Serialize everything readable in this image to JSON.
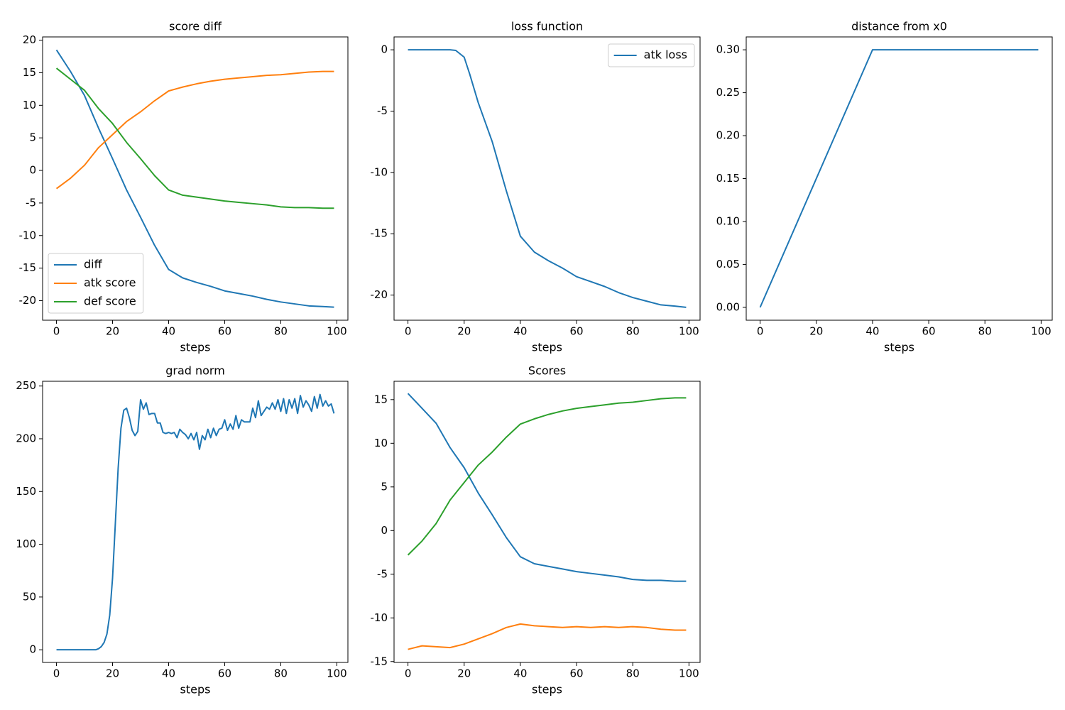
{
  "chart_data": [
    {
      "type": "line",
      "title": "score diff",
      "xlabel": "steps",
      "x": [
        0,
        5,
        10,
        15,
        20,
        25,
        30,
        35,
        40,
        45,
        50,
        55,
        60,
        65,
        70,
        75,
        80,
        85,
        90,
        95,
        99
      ],
      "series": [
        {
          "name": "diff",
          "color": "#1f77b4",
          "values": [
            18.5,
            15.2,
            11.5,
            6.5,
            1.8,
            -3,
            -7.2,
            -11.5,
            -15.2,
            -16.5,
            -17.2,
            -17.8,
            -18.5,
            -18.9,
            -19.3,
            -19.8,
            -20.2,
            -20.5,
            -20.8,
            -20.9,
            -21
          ]
        },
        {
          "name": "atk score",
          "color": "#ff7f0e",
          "values": [
            -2.8,
            -1.2,
            0.8,
            3.5,
            5.5,
            7.5,
            9.0,
            10.7,
            12.2,
            12.8,
            13.3,
            13.7,
            14.0,
            14.2,
            14.4,
            14.6,
            14.7,
            14.9,
            15.1,
            15.2,
            15.2
          ]
        },
        {
          "name": "def score",
          "color": "#2ca02c",
          "values": [
            15.7,
            14.0,
            12.3,
            9.5,
            7.2,
            4.3,
            1.8,
            -0.8,
            -3.0,
            -3.8,
            -4.1,
            -4.4,
            -4.7,
            -4.9,
            -5.1,
            -5.3,
            -5.6,
            -5.7,
            -5.7,
            -5.8,
            -5.8
          ]
        }
      ],
      "xlim": [
        -4.95,
        103.95
      ],
      "xticks": [
        0,
        20,
        40,
        60,
        80,
        100
      ],
      "ylim": [
        -23,
        20.5
      ],
      "yticks": [
        -20,
        -15,
        -10,
        -5,
        0,
        5,
        10,
        15,
        20
      ],
      "legend": "lower left"
    },
    {
      "type": "line",
      "title": "loss function",
      "xlabel": "steps",
      "x": [
        0,
        5,
        10,
        15,
        17,
        20,
        22,
        25,
        30,
        35,
        40,
        45,
        50,
        55,
        60,
        65,
        70,
        75,
        80,
        85,
        90,
        95,
        99
      ],
      "series": [
        {
          "name": "atk loss",
          "color": "#1f77b4",
          "values": [
            0,
            0,
            0,
            0,
            -0.05,
            -0.6,
            -2.0,
            -4.3,
            -7.5,
            -11.5,
            -15.2,
            -16.5,
            -17.2,
            -17.8,
            -18.5,
            -18.9,
            -19.3,
            -19.8,
            -20.2,
            -20.5,
            -20.8,
            -20.9,
            -21.0
          ]
        }
      ],
      "xlim": [
        -4.95,
        103.95
      ],
      "xticks": [
        0,
        20,
        40,
        60,
        80,
        100
      ],
      "ylim": [
        -22.05,
        1.05
      ],
      "yticks": [
        -20,
        -15,
        -10,
        -5,
        0
      ],
      "legend": "upper right"
    },
    {
      "type": "line",
      "title": "distance from x0",
      "xlabel": "steps",
      "x": [
        0,
        40,
        99
      ],
      "values": [
        0,
        0.3,
        0.3
      ],
      "color": "#1f77b4",
      "xlim": [
        -4.95,
        103.95
      ],
      "xticks": [
        0,
        20,
        40,
        60,
        80,
        100
      ],
      "ylim": [
        -0.015,
        0.315
      ],
      "yticks": [
        {
          "value": 0,
          "label": "0.00"
        },
        {
          "value": 0.05,
          "label": "0.05"
        },
        {
          "value": 0.1,
          "label": "0.10"
        },
        {
          "value": 0.15,
          "label": "0.15"
        },
        {
          "value": 0.2,
          "label": "0.20"
        },
        {
          "value": 0.25,
          "label": "0.25"
        },
        {
          "value": 0.3,
          "label": "0.30"
        }
      ]
    },
    {
      "type": "line",
      "title": "grad norm",
      "xlabel": "steps",
      "x": [
        0,
        1,
        2,
        3,
        4,
        5,
        6,
        7,
        8,
        9,
        10,
        11,
        12,
        13,
        14,
        15,
        16,
        17,
        18,
        19,
        20,
        21,
        22,
        23,
        24,
        25,
        26,
        27,
        28,
        29,
        30,
        31,
        32,
        33,
        34,
        35,
        36,
        37,
        38,
        39,
        40,
        41,
        42,
        43,
        44,
        45,
        46,
        47,
        48,
        49,
        50,
        51,
        52,
        53,
        54,
        55,
        56,
        57,
        58,
        59,
        60,
        61,
        62,
        63,
        64,
        65,
        66,
        67,
        68,
        69,
        70,
        71,
        72,
        73,
        74,
        75,
        76,
        77,
        78,
        79,
        80,
        81,
        82,
        83,
        84,
        85,
        86,
        87,
        88,
        89,
        90,
        91,
        92,
        93,
        94,
        95,
        96,
        97,
        98,
        99
      ],
      "values": [
        0,
        0,
        0,
        0,
        0,
        0,
        0,
        0,
        0,
        0,
        0,
        0,
        0,
        0,
        0,
        1,
        3,
        7,
        15,
        33,
        68,
        120,
        172,
        210,
        227,
        229,
        220,
        208,
        203,
        207,
        237,
        228,
        234,
        223,
        224,
        224,
        215,
        215,
        206,
        205,
        206,
        205,
        206,
        201,
        209,
        206,
        204,
        200,
        205,
        199,
        206,
        190,
        203,
        199,
        209,
        201,
        210,
        203,
        209,
        210,
        218,
        208,
        214,
        209,
        222,
        210,
        218,
        216,
        216,
        216,
        229,
        220,
        236,
        222,
        226,
        230,
        228,
        234,
        228,
        237,
        226,
        238,
        224,
        237,
        229,
        238,
        224,
        241,
        230,
        236,
        232,
        226,
        240,
        229,
        242,
        231,
        236,
        231,
        233,
        224
      ],
      "color": "#1f77b4",
      "xlim": [
        -4.95,
        103.95
      ],
      "xticks": [
        0,
        20,
        40,
        60,
        80,
        100
      ],
      "ylim": [
        -12,
        254.5
      ],
      "yticks": [
        0,
        50,
        100,
        150,
        200,
        250
      ]
    },
    {
      "type": "line",
      "title": "Scores",
      "xlabel": "steps",
      "x": [
        0,
        5,
        10,
        15,
        20,
        25,
        30,
        35,
        40,
        45,
        50,
        55,
        60,
        65,
        70,
        75,
        80,
        85,
        90,
        95,
        99
      ],
      "series": [
        {
          "color": "#1f77b4",
          "values": [
            15.7,
            14.0,
            12.3,
            9.5,
            7.2,
            4.3,
            1.8,
            -0.8,
            -3.0,
            -3.8,
            -4.1,
            -4.4,
            -4.7,
            -4.9,
            -5.1,
            -5.3,
            -5.6,
            -5.7,
            -5.7,
            -5.8,
            -5.8
          ]
        },
        {
          "color": "#ff7f0e",
          "values": [
            -13.6,
            -13.2,
            -13.3,
            -13.4,
            -13.0,
            -12.4,
            -11.8,
            -11.1,
            -10.7,
            -10.9,
            -11.0,
            -11.1,
            -11.0,
            -11.1,
            -11.0,
            -11.1,
            -11.0,
            -11.1,
            -11.3,
            -11.4,
            -11.4
          ]
        },
        {
          "color": "#2ca02c",
          "values": [
            -2.8,
            -1.2,
            0.8,
            3.5,
            5.5,
            7.5,
            9.0,
            10.7,
            12.2,
            12.8,
            13.3,
            13.7,
            14.0,
            14.2,
            14.4,
            14.6,
            14.7,
            14.9,
            15.1,
            15.2,
            15.2
          ]
        }
      ],
      "xlim": [
        -4.95,
        103.95
      ],
      "xticks": [
        0,
        20,
        40,
        60,
        80,
        100
      ],
      "ylim": [
        -15.1,
        17.1
      ],
      "yticks": [
        -15,
        -10,
        -5,
        0,
        5,
        10,
        15
      ]
    }
  ]
}
